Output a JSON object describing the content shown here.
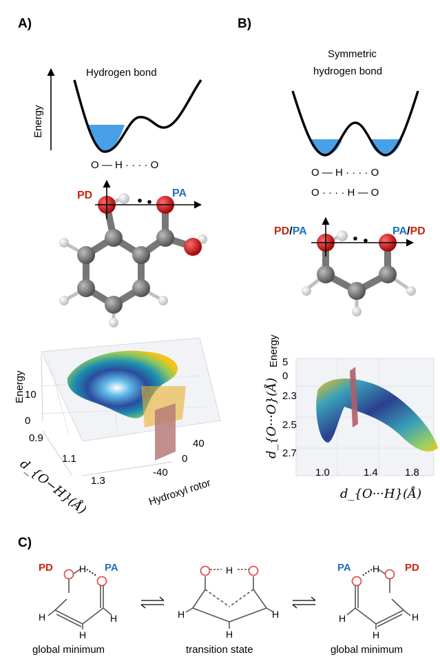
{
  "panels": {
    "a": "A)",
    "b": "B)",
    "c": "C)"
  },
  "panel_a": {
    "title": "Hydrogen bond",
    "energy_axis": "Energy",
    "bond_scheme": "O — H · · · · O",
    "donor_label": "PD",
    "acceptor_label": "PA",
    "surface": {
      "z_label": "Energy",
      "z_ticks": [
        "10",
        "0"
      ],
      "x_label": "d_{O−H}(Å)",
      "x_ticks": [
        "0.9",
        "1.1",
        "1.3"
      ],
      "y_label": "Hydroxyl rotor",
      "y_ticks": [
        "40",
        "0",
        "-40"
      ]
    }
  },
  "panel_b": {
    "title_line1": "Symmetric",
    "title_line2": "hydrogen bond",
    "bond_scheme_1": "O — H · · · · O",
    "bond_scheme_2": "O · · · · H — O",
    "left_label_red": "PD",
    "left_label_sep": "/",
    "left_label_blue": "PA",
    "right_label_blue": "PA",
    "right_label_sep": "/",
    "right_label_red": "PD",
    "surface": {
      "z_label": "Energy",
      "z_ticks": [
        "5",
        "0"
      ],
      "y_label": "d_{O···O}(Å)",
      "y_ticks": [
        "2.3",
        "2.5",
        "2.7"
      ],
      "x_label": "d_{O···H}(Å)",
      "x_ticks": [
        "1.0",
        "1.4",
        "1.8"
      ]
    }
  },
  "panel_c": {
    "left": {
      "donor": "PD",
      "acceptor": "PA",
      "caption": "global minimum"
    },
    "middle": {
      "caption": "transition state"
    },
    "right": {
      "donor": "PD",
      "acceptor": "PA",
      "caption": "global minimum"
    },
    "atom_o": "O",
    "atom_h": "H"
  },
  "colors": {
    "donor_red": "#c8240e",
    "acceptor_blue": "#1f6fc0",
    "well_fill": "#4aa0e6",
    "carbon": "#6e6e6e",
    "oxygen": "#d41b1b"
  }
}
